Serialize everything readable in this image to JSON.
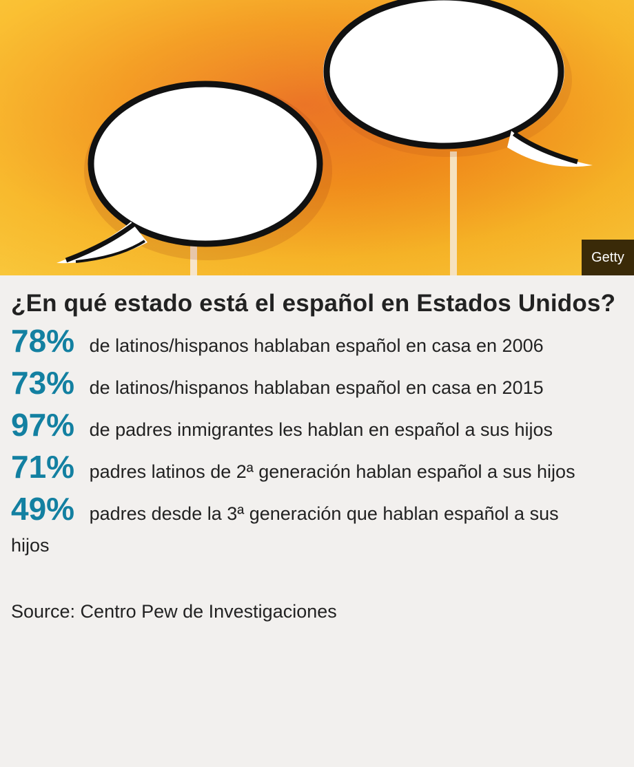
{
  "image": {
    "credit": "Getty",
    "background_color": "#f0a21a"
  },
  "header": {
    "title": "¿En qué estado está el español en Estados Unidos?"
  },
  "stats": [
    {
      "value": "78%",
      "text": "de latinos/hispanos hablaban español en casa en 2006"
    },
    {
      "value": "73%",
      "text": "de latinos/hispanos hablaban español en casa en 2015"
    },
    {
      "value": "97%",
      "text": "de padres inmigrantes les hablan en español a sus hijos"
    },
    {
      "value": "71%",
      "text": "padres latinos de 2ª generación hablan español a sus hijos"
    },
    {
      "value": "49%",
      "text": "padres desde la 3ª generación que hablan español a sus hijos"
    }
  ],
  "footer": {
    "source": "Source: Centro Pew de Investigaciones"
  },
  "colors": {
    "accent": "#1380a1",
    "text": "#222222",
    "card_background": "#f2f0ee"
  }
}
